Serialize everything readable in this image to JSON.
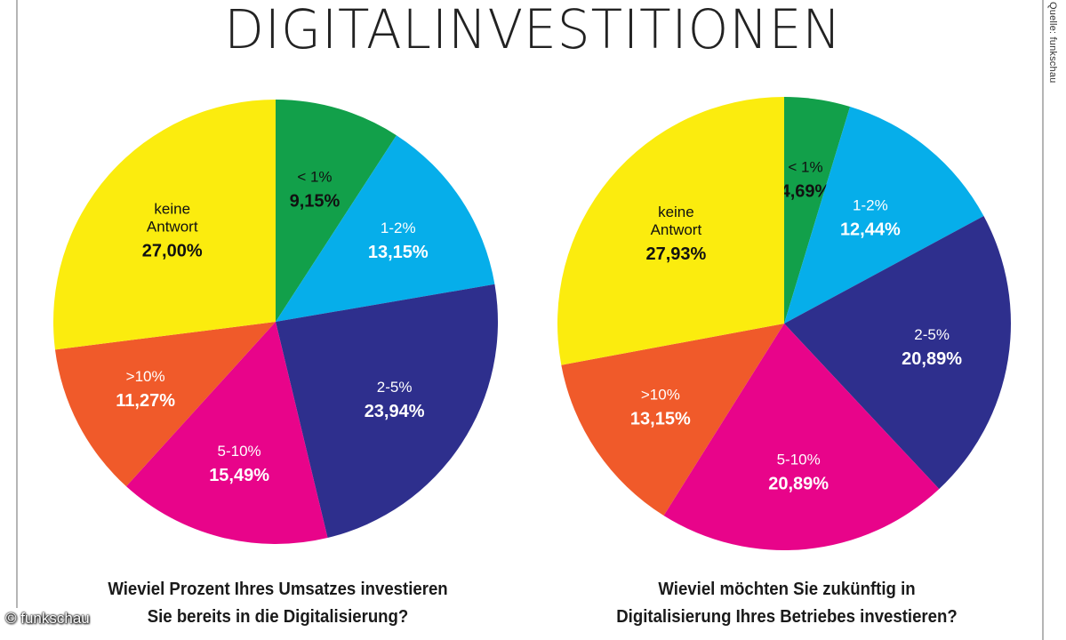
{
  "title": "DIGITALINVESTITIONEN",
  "source": "Quelle: funkschau",
  "watermark": "© funkschau",
  "colors": {
    "<1%": "#12a04a",
    "1-2%": "#06aeea",
    "2-5%": "#2e2f8d",
    "5-10%": "#e8048a",
    ">10%": "#f05a2a",
    "keine Antwort": "#fbec0e"
  },
  "chart_data": [
    {
      "type": "pie",
      "title": "Wieviel Prozent Ihres Umsatzes investieren\nSie bereits in die Digitalisierung?",
      "slices": [
        {
          "label": "< 1%",
          "value": 9.15,
          "display": "9,15%",
          "color": "#12a04a",
          "text_color": "#111111"
        },
        {
          "label": "1-2%",
          "value": 13.15,
          "display": "13,15%",
          "color": "#06aeea",
          "text_color": "#ffffff"
        },
        {
          "label": "2-5%",
          "value": 23.94,
          "display": "23,94%",
          "color": "#2e2f8d",
          "text_color": "#ffffff"
        },
        {
          "label": "5-10%",
          "value": 15.49,
          "display": "15,49%",
          "color": "#e8048a",
          "text_color": "#ffffff"
        },
        {
          "label": ">10%",
          "value": 11.27,
          "display": "11,27%",
          "color": "#f05a2a",
          "text_color": "#ffffff"
        },
        {
          "label": "keine\nAntwort",
          "value": 27.0,
          "display": "27,00%",
          "color": "#fbec0e",
          "text_color": "#111111"
        }
      ]
    },
    {
      "type": "pie",
      "title": "Wieviel möchten Sie zukünftig in\nDigitalisierung Ihres Betriebes investieren?",
      "slices": [
        {
          "label": "< 1%",
          "value": 4.69,
          "display": "4,69%",
          "color": "#12a04a",
          "text_color": "#111111"
        },
        {
          "label": "1-2%",
          "value": 12.44,
          "display": "12,44%",
          "color": "#06aeea",
          "text_color": "#ffffff"
        },
        {
          "label": "2-5%",
          "value": 20.89,
          "display": "20,89%",
          "color": "#2e2f8d",
          "text_color": "#ffffff"
        },
        {
          "label": "5-10%",
          "value": 20.89,
          "display": "20,89%",
          "color": "#e8048a",
          "text_color": "#ffffff"
        },
        {
          "label": ">10%",
          "value": 13.15,
          "display": "13,15%",
          "color": "#f05a2a",
          "text_color": "#ffffff"
        },
        {
          "label": "keine\nAntwort",
          "value": 27.93,
          "display": "27,93%",
          "color": "#fbec0e",
          "text_color": "#111111"
        }
      ]
    }
  ]
}
